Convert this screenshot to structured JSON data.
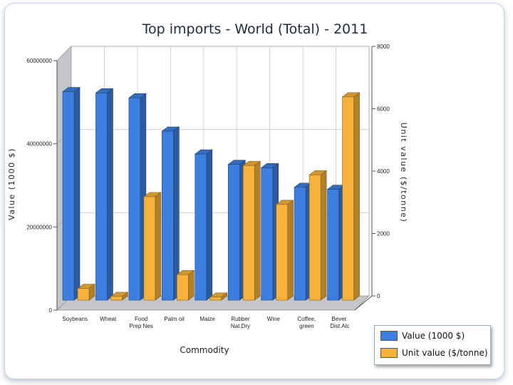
{
  "chart_data": {
    "type": "bar",
    "title": "Top imports - World    (Total) - 2011",
    "xlabel": "Commodity",
    "ylabel": "Value (1000 $)",
    "y2label": "Unit value ($/tonne)",
    "categories": [
      [
        "Soybeans"
      ],
      [
        "Wheat"
      ],
      [
        "Food",
        "Prep Nes"
      ],
      [
        "Palm oil"
      ],
      [
        "Maize"
      ],
      [
        "Rubber",
        "Nat.Dry"
      ],
      [
        "Wine"
      ],
      [
        "Coffee,",
        "green"
      ],
      [
        "Bever.",
        "Dist.Alc"
      ]
    ],
    "ylim": [
      0,
      60000000
    ],
    "yticks": [
      "0",
      "20000000",
      "40000000",
      "60000000"
    ],
    "y2lim": [
      0,
      8000
    ],
    "y2ticks": [
      "0",
      "2000",
      "4000",
      "6000",
      "8000"
    ],
    "grid": true,
    "legend_position": "bottom-right",
    "series": [
      {
        "name": "Value (1000 $)",
        "axis": "left",
        "color": "#3d7fe0",
        "values": [
          51500000,
          51200000,
          50000000,
          42000000,
          36500000,
          34000000,
          33200000,
          28500000,
          28000000
        ]
      },
      {
        "name": "Unit value ($/tonne)",
        "axis": "right",
        "color": "#f7b23b",
        "values": [
          560,
          300,
          3500,
          1000,
          280,
          4500,
          3250,
          4200,
          6700
        ]
      }
    ]
  }
}
